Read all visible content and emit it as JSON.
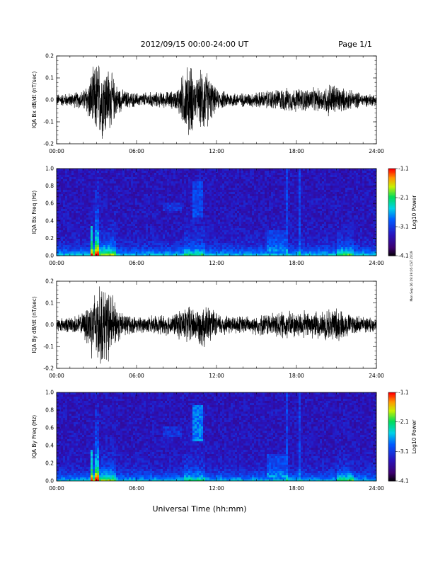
{
  "header": {
    "title": "2012/09/15  00:00-24:00 UT",
    "page": "Page 1/1"
  },
  "footer": {
    "xlabel": "Universal Time (hh:mm)",
    "side_stamp": "Mon Sep 16 19:39:05 CST 2019"
  },
  "chart_data": [
    {
      "type": "line",
      "name": "bx-time-series",
      "ylabel": "IQA Bx dB/dt (nT/sec)",
      "xlim": [
        0,
        24
      ],
      "ylim": [
        -0.2,
        0.2
      ],
      "x_ticks": [
        "00:00",
        "06:00",
        "12:00",
        "18:00",
        "24:00"
      ],
      "y_ticks": [
        "-0.2",
        "-0.1",
        "0.0",
        "0.1",
        "0.2"
      ],
      "envelope": {
        "hours": [
          0,
          1,
          2,
          2.5,
          3,
          3.5,
          4,
          4.5,
          5,
          6,
          7,
          8,
          9,
          9.5,
          10,
          10.5,
          11,
          11.5,
          12,
          13,
          14,
          15,
          16,
          17,
          18,
          19,
          20,
          20.5,
          21,
          21.5,
          22,
          23,
          24
        ],
        "amplitude": [
          0.03,
          0.035,
          0.05,
          0.12,
          0.2,
          0.2,
          0.16,
          0.08,
          0.05,
          0.035,
          0.04,
          0.04,
          0.05,
          0.14,
          0.2,
          0.1,
          0.18,
          0.12,
          0.05,
          0.04,
          0.035,
          0.04,
          0.05,
          0.06,
          0.06,
          0.06,
          0.06,
          0.09,
          0.08,
          0.06,
          0.05,
          0.035,
          0.03
        ]
      }
    },
    {
      "type": "heatmap",
      "name": "bx-spectrogram",
      "ylabel": "IQA Bx Freq (Hz)",
      "xlim": [
        0,
        24
      ],
      "ylim": [
        0,
        1.0
      ],
      "x_ticks": [
        "00:00",
        "06:00",
        "12:00",
        "18:00",
        "24:00"
      ],
      "y_ticks": [
        "0.0",
        "0.2",
        "0.4",
        "0.6",
        "0.8",
        "1.0"
      ],
      "colorbar": {
        "label": "Log10 Power",
        "range": [
          -4.1,
          -1.1
        ],
        "ticks": [
          "-1.1",
          "-2.1",
          "-3.1",
          "-4.1"
        ]
      }
    },
    {
      "type": "line",
      "name": "by-time-series",
      "ylabel": "IQA By dB/dt (nT/sec)",
      "xlim": [
        0,
        24
      ],
      "ylim": [
        -0.2,
        0.2
      ],
      "x_ticks": [
        "00:00",
        "06:00",
        "12:00",
        "18:00",
        "24:00"
      ],
      "y_ticks": [
        "-0.2",
        "-0.1",
        "0.0",
        "0.1",
        "0.2"
      ],
      "envelope": {
        "hours": [
          0,
          1,
          2,
          2.5,
          3,
          3.5,
          4,
          4.5,
          5,
          6,
          7,
          8,
          9,
          9.5,
          10,
          10.5,
          11,
          11.5,
          12,
          13,
          14,
          15,
          16,
          17,
          18,
          19,
          20,
          20.5,
          21,
          21.5,
          22,
          23,
          24
        ],
        "amplitude": [
          0.035,
          0.04,
          0.06,
          0.15,
          0.2,
          0.2,
          0.18,
          0.1,
          0.06,
          0.04,
          0.045,
          0.05,
          0.06,
          0.09,
          0.1,
          0.08,
          0.12,
          0.09,
          0.06,
          0.05,
          0.045,
          0.05,
          0.06,
          0.07,
          0.07,
          0.07,
          0.07,
          0.09,
          0.09,
          0.07,
          0.06,
          0.04,
          0.035
        ]
      }
    },
    {
      "type": "heatmap",
      "name": "by-spectrogram",
      "ylabel": "IQA By Freq (Hz)",
      "xlim": [
        0,
        24
      ],
      "ylim": [
        0,
        1.0
      ],
      "x_ticks": [
        "00:00",
        "06:00",
        "12:00",
        "18:00",
        "24:00"
      ],
      "y_ticks": [
        "0.0",
        "0.2",
        "0.4",
        "0.6",
        "0.8",
        "1.0"
      ],
      "colorbar": {
        "label": "Log10 Power",
        "range": [
          -4.1,
          -1.1
        ],
        "ticks": [
          "-1.1",
          "-2.1",
          "-3.1",
          "-4.1"
        ]
      }
    }
  ]
}
